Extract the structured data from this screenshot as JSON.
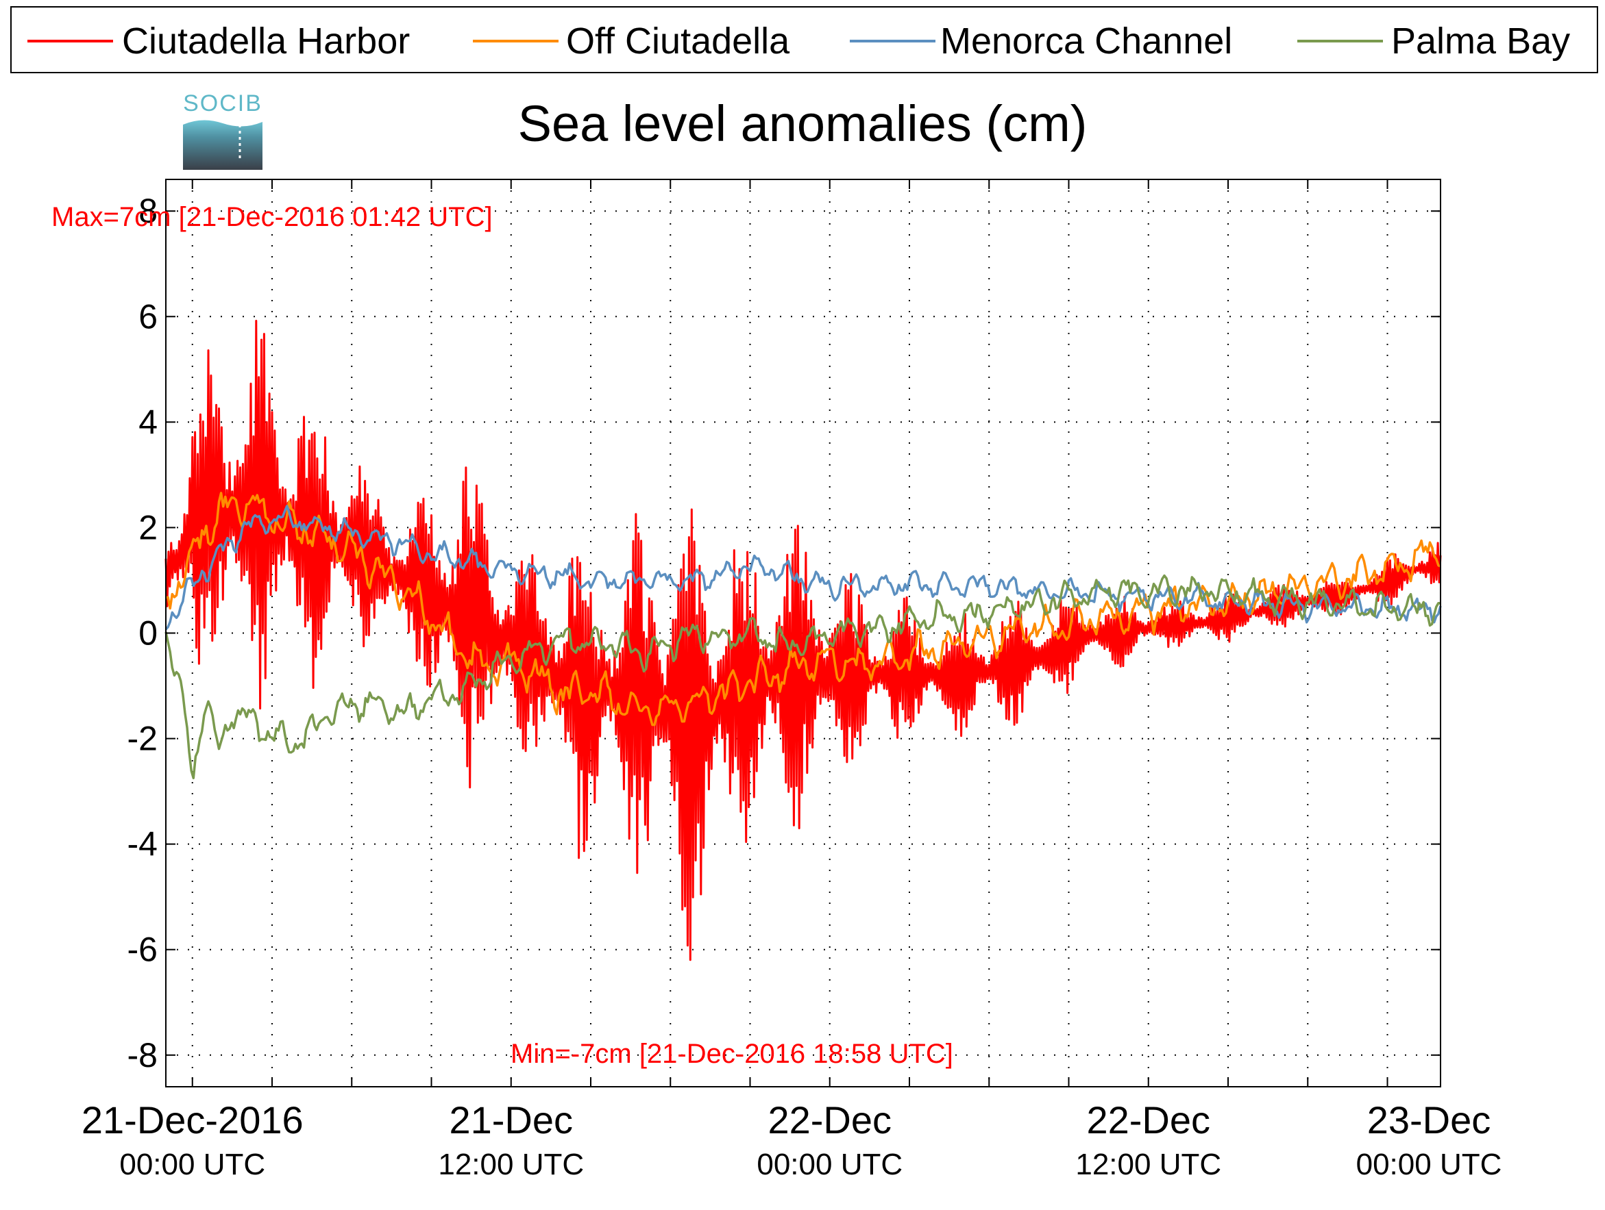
{
  "chart_data": {
    "type": "line",
    "title": "Sea level anomalies (cm)",
    "logo_text": "SOCIB",
    "xlabel": "",
    "ylabel": "",
    "x_unit": "hours since 21-Dec-2016 00:00 UTC",
    "xlim": [
      -1,
      47
    ],
    "ylim": [
      -8.6,
      8.6
    ],
    "y_ticks": [
      -8,
      -6,
      -4,
      -2,
      0,
      2,
      4,
      6,
      8
    ],
    "x_minor_ticks": [
      0,
      3,
      6,
      9,
      12,
      15,
      18,
      21,
      24,
      27,
      30,
      33,
      36,
      39,
      42,
      45
    ],
    "x_major_ticks": [
      {
        "x": 0,
        "line1": "21-Dec-2016",
        "line2": "00:00 UTC"
      },
      {
        "x": 12,
        "line1": "21-Dec",
        "line2": "12:00 UTC"
      },
      {
        "x": 24,
        "line1": "22-Dec",
        "line2": "00:00 UTC"
      },
      {
        "x": 36,
        "line1": "22-Dec",
        "line2": "12:00 UTC"
      },
      {
        "x": 48,
        "line1": "23-Dec",
        "line2": "00:00 UTC"
      }
    ],
    "grid": true,
    "legend_position": "top",
    "annotations": [
      {
        "text": "Max=7cm [21-Dec-2016 01:42 UTC]",
        "x": 1.7,
        "y": 7.3,
        "color": "#ff0000"
      },
      {
        "text": "Min=-7cm [21-Dec-2016 18:58 UTC]",
        "x": 19.0,
        "y": -7.5,
        "color": "#ff0000"
      }
    ],
    "series": [
      {
        "name": "Ciutadella Harbor",
        "color": "#ff0000",
        "style": "oscillating",
        "x_start": -1,
        "x_end": 47,
        "step": 0.05,
        "envelope_x": [
          -1,
          0,
          1,
          1.7,
          3,
          4,
          5,
          6,
          7,
          8,
          9,
          10,
          11,
          12,
          13,
          14,
          15,
          16,
          17,
          18,
          19,
          20,
          21,
          22,
          23,
          24,
          25,
          26,
          27,
          28,
          29,
          30,
          31,
          32,
          33,
          34,
          35,
          36,
          37,
          38,
          39,
          40,
          41,
          42,
          43,
          44,
          45,
          46,
          47
        ],
        "envelope_amp": [
          1.5,
          3.0,
          3.8,
          4.6,
          3.5,
          3.2,
          3.0,
          2.0,
          1.8,
          1.5,
          2.2,
          4.0,
          3.0,
          2.5,
          2.0,
          3.5,
          3.5,
          2.8,
          3.8,
          4.2,
          5.0,
          4.0,
          3.0,
          3.6,
          3.0,
          2.5,
          1.8,
          1.5,
          1.5,
          1.3,
          1.3,
          1.2,
          1.3,
          1.3,
          1.0,
          0.8,
          0.7,
          0.6,
          0.5,
          0.5,
          0.5,
          0.45,
          0.45,
          0.45,
          0.45,
          0.45,
          0.5,
          0.5,
          0.5
        ],
        "center_x": [
          -1,
          0,
          2,
          4,
          6,
          8,
          10,
          12,
          14,
          16,
          18,
          19,
          20,
          22,
          24,
          26,
          28,
          30,
          32,
          34,
          36,
          38,
          40,
          42,
          44,
          46,
          47
        ],
        "center_y": [
          1.0,
          2.0,
          2.4,
          2.0,
          1.6,
          1.0,
          0.4,
          -0.2,
          -1.0,
          -1.1,
          -1.4,
          -1.5,
          -1.2,
          -0.8,
          -0.7,
          -0.8,
          -0.8,
          -0.7,
          -0.4,
          0.0,
          0.1,
          0.2,
          0.4,
          0.6,
          0.8,
          1.2,
          1.3
        ]
      },
      {
        "name": "Off Ciutadella",
        "color": "#ff8c00",
        "style": "wavy",
        "x": [
          -1,
          0,
          1,
          2,
          3,
          4,
          5,
          6,
          7,
          8,
          9,
          10,
          11,
          12,
          13,
          14,
          15,
          16,
          17,
          18,
          19,
          20,
          21,
          22,
          23,
          24,
          25,
          26,
          27,
          28,
          29,
          30,
          31,
          32,
          33,
          34,
          35,
          36,
          37,
          38,
          39,
          40,
          41,
          42,
          43,
          44,
          45,
          46,
          47
        ],
        "y": [
          0.5,
          1.5,
          2.3,
          2.5,
          2.2,
          2.0,
          1.8,
          1.6,
          1.2,
          0.8,
          0.3,
          -0.3,
          -0.6,
          -0.5,
          -0.8,
          -1.2,
          -1.0,
          -1.3,
          -1.5,
          -1.4,
          -1.3,
          -1.1,
          -0.9,
          -0.8,
          -0.6,
          -0.5,
          -0.6,
          -0.5,
          -0.4,
          -0.3,
          -0.2,
          -0.1,
          0.0,
          0.1,
          0.2,
          0.3,
          0.35,
          0.4,
          0.5,
          0.55,
          0.6,
          0.7,
          0.8,
          0.9,
          1.0,
          1.1,
          1.25,
          1.4,
          1.55
        ],
        "wiggle": 0.45
      },
      {
        "name": "Menorca Channel",
        "color": "#5b8fc0",
        "style": "wavy",
        "x": [
          -1,
          0,
          1,
          2,
          3,
          4,
          5,
          6,
          7,
          8,
          9,
          10,
          11,
          12,
          13,
          14,
          15,
          16,
          17,
          18,
          19,
          20,
          21,
          22,
          23,
          24,
          25,
          26,
          27,
          28,
          29,
          30,
          31,
          32,
          33,
          34,
          35,
          36,
          37,
          38,
          39,
          40,
          41,
          42,
          43,
          44,
          45,
          46,
          47
        ],
        "y": [
          0.2,
          0.9,
          1.5,
          2.0,
          2.2,
          2.1,
          2.0,
          1.9,
          1.8,
          1.7,
          1.5,
          1.4,
          1.3,
          1.2,
          1.1,
          1.1,
          1.0,
          1.0,
          1.0,
          1.0,
          1.0,
          1.1,
          1.3,
          1.2,
          1.0,
          0.9,
          0.9,
          0.9,
          0.95,
          0.9,
          0.9,
          0.9,
          0.85,
          0.8,
          0.8,
          0.75,
          0.7,
          0.7,
          0.7,
          0.65,
          0.6,
          0.6,
          0.55,
          0.5,
          0.5,
          0.5,
          0.45,
          0.45,
          0.45
        ],
        "wiggle": 0.28
      },
      {
        "name": "Palma Bay",
        "color": "#7a9a4e",
        "style": "wavy",
        "x": [
          -1,
          -0.5,
          0,
          0.5,
          1,
          1.5,
          2,
          3,
          4,
          5,
          6,
          7,
          8,
          9,
          10,
          11,
          12,
          13,
          14,
          15,
          16,
          17,
          18,
          19,
          20,
          21,
          22,
          23,
          24,
          25,
          26,
          27,
          28,
          29,
          30,
          31,
          32,
          33,
          34,
          35,
          36,
          37,
          38,
          39,
          40,
          41,
          42,
          43,
          44,
          45,
          46,
          47
        ],
        "y": [
          0.0,
          -0.8,
          -2.8,
          -1.2,
          -2.2,
          -1.5,
          -1.6,
          -1.9,
          -2.1,
          -1.6,
          -1.3,
          -1.4,
          -1.5,
          -1.2,
          -1.2,
          -0.8,
          -0.5,
          -0.3,
          -0.1,
          -0.2,
          -0.2,
          -0.4,
          -0.2,
          0.0,
          -0.1,
          0.0,
          -0.2,
          -0.2,
          0.0,
          0.1,
          0.1,
          0.2,
          0.3,
          0.3,
          0.4,
          0.5,
          0.6,
          0.7,
          0.7,
          0.8,
          0.8,
          0.8,
          0.8,
          0.75,
          0.7,
          0.65,
          0.6,
          0.55,
          0.5,
          0.45,
          0.45,
          0.5
        ],
        "wiggle": 0.35
      }
    ]
  }
}
